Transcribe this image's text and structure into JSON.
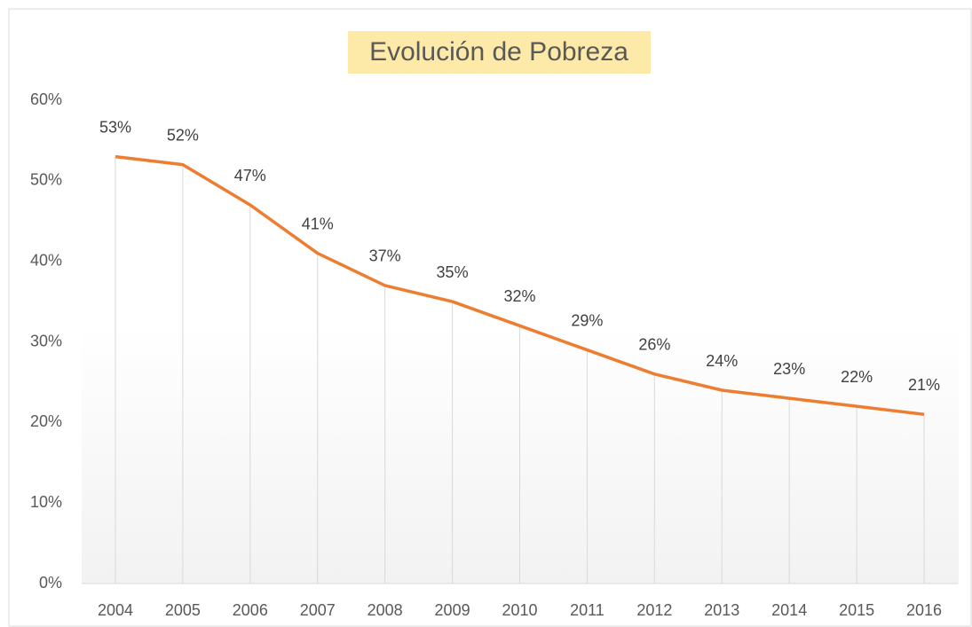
{
  "chart_data": {
    "type": "line",
    "title": "Evolución de Pobreza",
    "categories": [
      "2004",
      "2005",
      "2006",
      "2007",
      "2008",
      "2009",
      "2010",
      "2011",
      "2012",
      "2013",
      "2014",
      "2015",
      "2016"
    ],
    "values": [
      53,
      52,
      47,
      41,
      37,
      35,
      32,
      29,
      26,
      24,
      23,
      22,
      21
    ],
    "value_labels": [
      "53%",
      "52%",
      "47%",
      "41%",
      "37%",
      "35%",
      "32%",
      "29%",
      "26%",
      "24%",
      "23%",
      "22%",
      "21%"
    ],
    "color": "#ed7d31",
    "ylim": [
      0,
      60
    ],
    "yticks": [
      {
        "value": 0,
        "label": "0%"
      },
      {
        "value": 10,
        "label": "10%"
      },
      {
        "value": 20,
        "label": "20%"
      },
      {
        "value": 30,
        "label": "30%"
      },
      {
        "value": 40,
        "label": "40%"
      },
      {
        "value": 50,
        "label": "50%"
      },
      {
        "value": 60,
        "label": "60%"
      }
    ],
    "grid": false,
    "drop_lines": true
  }
}
